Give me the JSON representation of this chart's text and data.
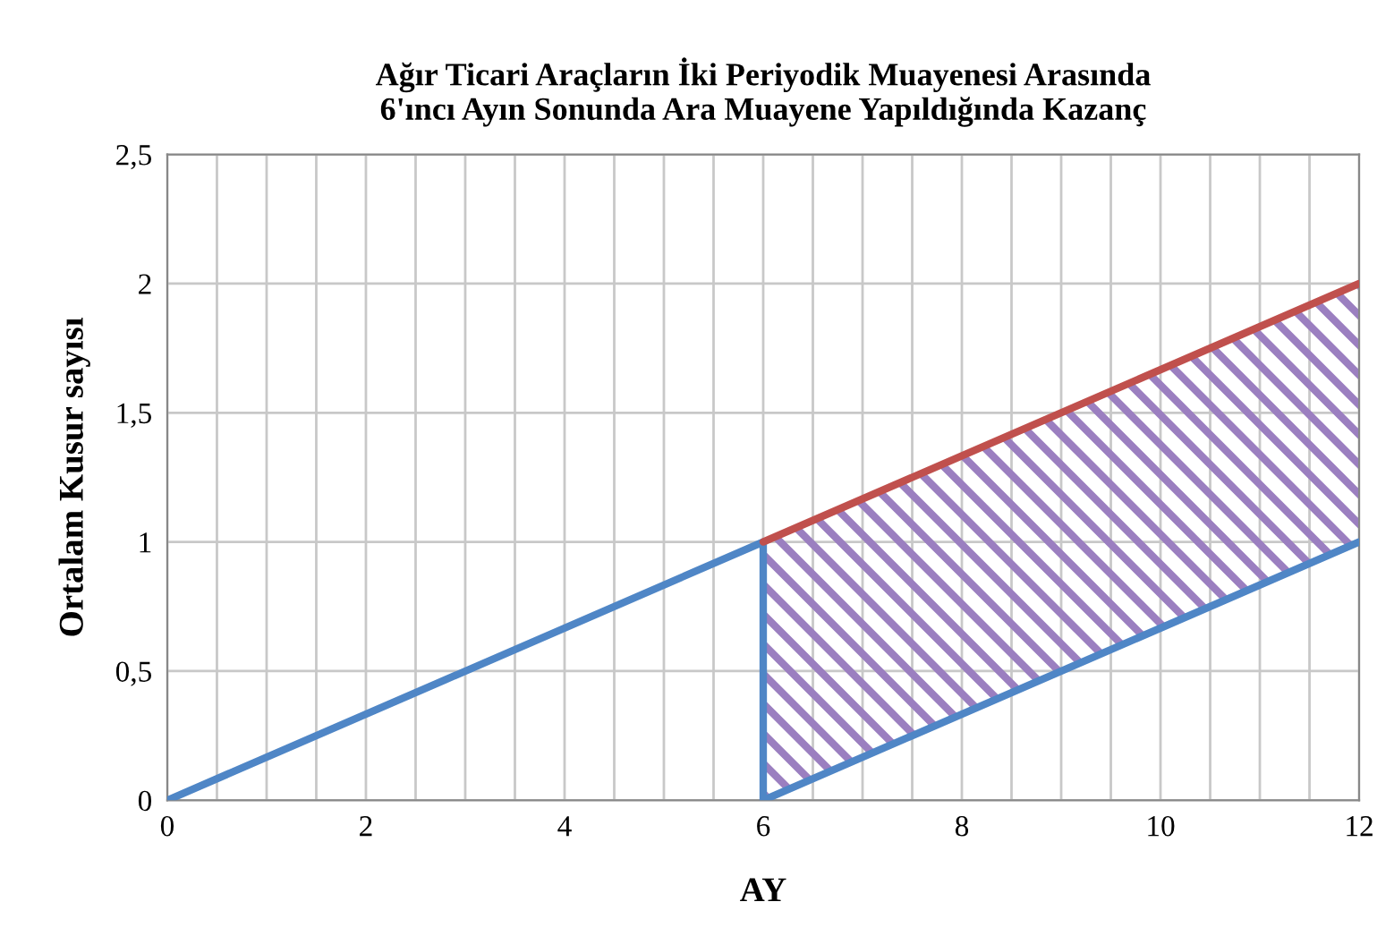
{
  "chart_data": {
    "type": "line",
    "title": "Ağır Ticari Araçların İki Periyodik Muayenesi Arasında\n6'ıncı Ayın Sonunda Ara Muayene Yapıldığında Kazanç",
    "xlabel": "AY",
    "ylabel": "Ortalam Kusur sayısı",
    "series": [
      {
        "color": "#4f86c6",
        "x": [
          0,
          6,
          6,
          12
        ],
        "values": [
          0,
          1,
          0,
          1
        ]
      },
      {
        "color": "#c0504d",
        "x": [
          6,
          12
        ],
        "values": [
          1,
          2
        ],
        "lower": [
          0,
          1
        ],
        "upper": [
          1,
          2
        ]
      }
    ],
    "xlim": [
      0,
      12
    ],
    "xticks": [
      0,
      {
        "value": 0.5,
        "label": null
      },
      {
        "value": 1,
        "label": null
      },
      {
        "value": 1.5,
        "label": null
      },
      2,
      {
        "value": 2.5,
        "label": null
      },
      {
        "value": 3,
        "label": null
      },
      {
        "value": 3.5,
        "label": null
      },
      4,
      {
        "value": 4.5,
        "label": null
      },
      {
        "value": 5,
        "label": null
      },
      {
        "value": 5.5,
        "label": null
      },
      6,
      {
        "value": 6.5,
        "label": null
      },
      {
        "value": 7,
        "label": null
      },
      {
        "value": 7.5,
        "label": null
      },
      8,
      {
        "value": 8.5,
        "label": null
      },
      {
        "value": 9,
        "label": null
      },
      {
        "value": 9.5,
        "label": null
      },
      10,
      {
        "value": 10.5,
        "label": null
      },
      {
        "value": 11,
        "label": null
      },
      {
        "value": 11.5,
        "label": null
      },
      12
    ],
    "ylim": [
      0,
      2.5
    ],
    "yticks": [
      0,
      {
        "value": 0.5,
        "label": "0,5"
      },
      1,
      {
        "value": 1.5,
        "label": "1,5"
      },
      2,
      {
        "value": 2.5,
        "label": "2,5"
      }
    ],
    "grid": true,
    "legend": false,
    "marker": "none",
    "line_style": "solid"
  }
}
